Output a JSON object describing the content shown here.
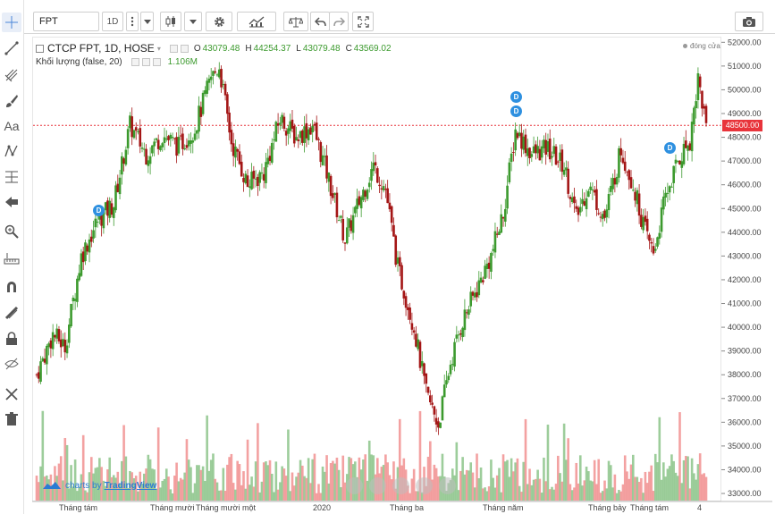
{
  "toolbar": {
    "symbol": "FPT",
    "interval": "1D",
    "icons": [
      "chevron-down-icon",
      "candlestick-icon",
      "gear-icon",
      "indicators-icon",
      "compare-icon",
      "undo-icon",
      "redo-icon",
      "fullscreen-icon",
      "camera-icon"
    ]
  },
  "left_tools": [
    "crosshair-icon",
    "trend-line-icon",
    "pitchfork-icon",
    "brush-icon",
    "text-icon",
    "pattern-icon",
    "fib-icon",
    "arrow-left-icon",
    "zoom-icon",
    "measure-icon",
    "magnet-icon",
    "lock-drawings-icon",
    "lock-icon",
    "hide-icon",
    "remove-drawings-icon",
    "trash-icon"
  ],
  "legend": {
    "title": "CTCP FPT, 1D, HOSE",
    "o_label": "O",
    "o_value": "43079.48",
    "h_label": "H",
    "h_value": "44254.37",
    "l_label": "L",
    "l_value": "43079.48",
    "c_label": "C",
    "c_value": "43569.02",
    "volume_label": "Khối lượng (false, 20)",
    "volume_value": "1.106M",
    "close_note": "đóng cửa"
  },
  "last_price_label": "48500.00",
  "watermark": {
    "prefix": "charts by",
    "brand": "TradingView"
  },
  "badges": [
    "D",
    "D",
    "D",
    "D"
  ],
  "colors": {
    "up": "#3c9a2e",
    "down": "#a41616",
    "vol_up": "#8cc48a",
    "vol_down": "#f19191",
    "last_price": "#e8343b",
    "badge": "#2e90e0"
  },
  "chart_data": {
    "type": "candlestick",
    "y_ticks": [
      "52000.00",
      "51000.00",
      "50000.00",
      "49000.00",
      "48000.00",
      "47000.00",
      "46000.00",
      "45000.00",
      "44000.00",
      "43000.00",
      "42000.00",
      "41000.00",
      "40000.00",
      "39000.00",
      "38000.00",
      "37000.00",
      "36000.00",
      "35000.00",
      "34000.00",
      "33000.00"
    ],
    "x_ticks": [
      "Tháng tám",
      "Tháng mười",
      "Tháng mười một",
      "2020",
      "Tháng ba",
      "Tháng năm",
      "Tháng bảy",
      "Tháng tám",
      "4"
    ],
    "ylim": [
      32700,
      52200
    ],
    "last_price": 48500,
    "approx_close_path": [
      [
        0,
        38000
      ],
      [
        8,
        39700
      ],
      [
        14,
        39200
      ],
      [
        22,
        43000
      ],
      [
        30,
        44500
      ],
      [
        38,
        45200
      ],
      [
        46,
        48500
      ],
      [
        54,
        47300
      ],
      [
        62,
        48100
      ],
      [
        70,
        47600
      ],
      [
        78,
        48400
      ],
      [
        86,
        50500
      ],
      [
        90,
        51000
      ],
      [
        96,
        47800
      ],
      [
        104,
        46000
      ],
      [
        112,
        46500
      ],
      [
        120,
        48800
      ],
      [
        128,
        48000
      ],
      [
        136,
        48500
      ],
      [
        144,
        46200
      ],
      [
        152,
        43700
      ],
      [
        160,
        45500
      ],
      [
        166,
        46800
      ],
      [
        172,
        45800
      ],
      [
        178,
        42500
      ],
      [
        186,
        40000
      ],
      [
        192,
        37200
      ],
      [
        198,
        35900
      ],
      [
        204,
        38500
      ],
      [
        210,
        40300
      ],
      [
        218,
        41800
      ],
      [
        224,
        43000
      ],
      [
        230,
        44800
      ],
      [
        236,
        48300
      ],
      [
        244,
        47300
      ],
      [
        252,
        47500
      ],
      [
        260,
        46800
      ],
      [
        266,
        44600
      ],
      [
        272,
        46000
      ],
      [
        280,
        44600
      ],
      [
        288,
        47500
      ],
      [
        294,
        46000
      ],
      [
        300,
        44000
      ],
      [
        304,
        43100
      ],
      [
        310,
        45500
      ],
      [
        316,
        47000
      ],
      [
        322,
        47900
      ],
      [
        326,
        50500
      ],
      [
        330,
        48500
      ]
    ]
  }
}
